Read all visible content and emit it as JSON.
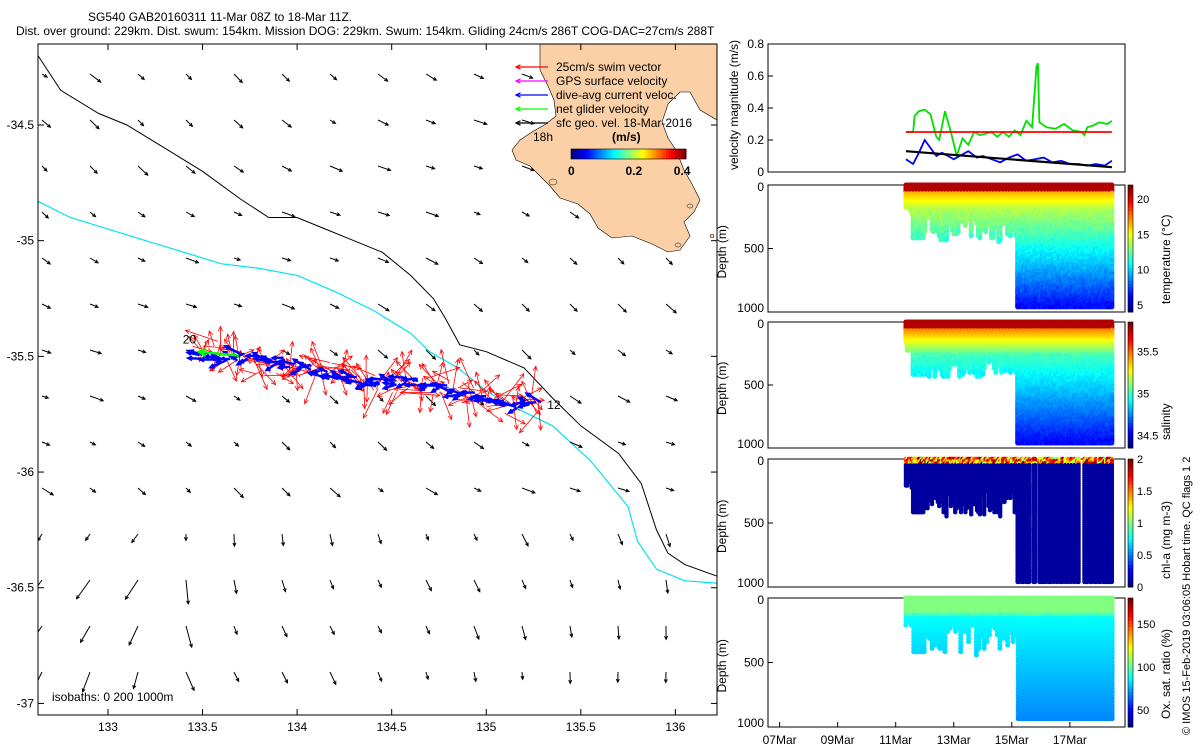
{
  "header": {
    "title": "SG540 GAB20160311 11-Mar 08Z to 18-Mar 11Z.",
    "subtitle": "Dist. over ground: 229km. Dist. swum: 154km. Mission DOG: 229km. Swum: 154km. Gliding 24cm/s 286T COG-DAC=27cm/s 288T"
  },
  "credit": "© IMOS 15-Feb-2019 03:06:05 Hobart time. QC flags 1  2",
  "chart_data": [
    {
      "type": "map",
      "name": "glider track map",
      "xlim": [
        132.63,
        136.22
      ],
      "ylim": [
        -37.05,
        -34.15
      ],
      "x_ticks": [
        133,
        133.5,
        134,
        134.5,
        135,
        135.5,
        136
      ],
      "y_ticks": [
        -34.5,
        -35,
        -35.5,
        -36,
        -36.5,
        -37
      ],
      "x_tick_labels": [
        "133",
        "133.5",
        "134",
        "134.5",
        "135",
        "135.5",
        "136"
      ],
      "y_tick_labels": [
        "-34.5",
        "-35",
        "-35.5",
        "-36",
        "-36.5",
        "-37"
      ],
      "legend": [
        {
          "label": "25cm/s swim vector",
          "color": "#ff0000"
        },
        {
          "label": "GPS surface velocity",
          "color": "#ff00ff"
        },
        {
          "label": "dive-avg current veloc.",
          "color": "#0000ff"
        },
        {
          "label": "net glider velocity",
          "color": "#00ff00"
        },
        {
          "label": "sfc geo. vel. 18-Mar-2016",
          "color": "#000000"
        }
      ],
      "legend_time_label": "18h",
      "colorbar": {
        "label": "(m/s)",
        "ticks": [
          "0",
          "0.2",
          "0.4"
        ]
      },
      "isobaths_label": "isobaths: 0  200  1000m",
      "track_start_label": "12",
      "track_end_label": "20",
      "track": {
        "start": [
          135.28,
          -35.71
        ],
        "end": [
          133.48,
          -35.48
        ]
      },
      "isobath_200m": [
        [
          132.63,
          -34.2
        ],
        [
          132.75,
          -34.35
        ],
        [
          132.95,
          -34.45
        ],
        [
          133.1,
          -34.5
        ],
        [
          133.3,
          -34.6
        ],
        [
          133.5,
          -34.7
        ],
        [
          133.7,
          -34.82
        ],
        [
          133.85,
          -34.9
        ],
        [
          134.0,
          -34.9
        ],
        [
          134.15,
          -34.95
        ],
        [
          134.3,
          -35.0
        ],
        [
          134.45,
          -35.05
        ],
        [
          134.6,
          -35.15
        ],
        [
          134.72,
          -35.25
        ],
        [
          134.78,
          -35.33
        ],
        [
          134.86,
          -35.45
        ],
        [
          135.0,
          -35.48
        ],
        [
          135.2,
          -35.55
        ],
        [
          135.35,
          -35.68
        ],
        [
          135.5,
          -35.8
        ],
        [
          135.7,
          -35.92
        ],
        [
          135.82,
          -36.05
        ],
        [
          135.9,
          -36.25
        ],
        [
          135.96,
          -36.35
        ],
        [
          136.05,
          -36.4
        ],
        [
          136.22,
          -36.45
        ]
      ],
      "isobath_1000m": [
        [
          132.63,
          -34.83
        ],
        [
          132.8,
          -34.9
        ],
        [
          133.0,
          -34.95
        ],
        [
          133.2,
          -35.0
        ],
        [
          133.4,
          -35.05
        ],
        [
          133.6,
          -35.1
        ],
        [
          133.8,
          -35.12
        ],
        [
          134.0,
          -35.15
        ],
        [
          134.2,
          -35.22
        ],
        [
          134.4,
          -35.3
        ],
        [
          134.6,
          -35.4
        ],
        [
          134.7,
          -35.48
        ],
        [
          134.85,
          -35.55
        ],
        [
          135.0,
          -35.65
        ],
        [
          135.15,
          -35.72
        ],
        [
          135.35,
          -35.8
        ],
        [
          135.55,
          -35.95
        ],
        [
          135.65,
          -36.05
        ],
        [
          135.75,
          -36.15
        ],
        [
          135.8,
          -36.3
        ],
        [
          135.9,
          -36.42
        ],
        [
          136.05,
          -36.47
        ],
        [
          136.22,
          -36.48
        ]
      ]
    },
    {
      "type": "line",
      "name": "velocity magnitude",
      "ylabel": "velocity magnitude (m/s)",
      "ylim": [
        0,
        0.8
      ],
      "y_ticks": [
        0,
        0.2,
        0.4,
        0.6,
        0.8
      ],
      "y_tick_labels": [
        "0",
        "0.2",
        "0.4",
        "0.6",
        "0.8"
      ],
      "series": [
        {
          "color": "#00e000",
          "x": [
            11.35,
            11.6,
            11.65,
            11.8,
            12.0,
            12.2,
            12.4,
            12.5,
            12.7,
            12.9,
            13.1,
            13.3,
            13.5,
            13.7,
            13.9,
            14.1,
            14.3,
            14.5,
            14.7,
            14.9,
            15.1,
            15.3,
            15.5,
            15.7,
            15.85,
            15.9,
            15.95,
            16.2,
            16.5,
            16.8,
            17.1,
            17.4,
            17.5,
            17.6,
            17.8,
            18.0,
            18.3,
            18.45
          ],
          "y": [
            0.25,
            0.25,
            0.35,
            0.38,
            0.39,
            0.36,
            0.22,
            0.2,
            0.38,
            0.25,
            0.1,
            0.21,
            0.17,
            0.25,
            0.23,
            0.24,
            0.25,
            0.22,
            0.25,
            0.22,
            0.26,
            0.23,
            0.32,
            0.28,
            0.66,
            0.68,
            0.31,
            0.28,
            0.27,
            0.3,
            0.26,
            0.25,
            0.23,
            0.28,
            0.29,
            0.31,
            0.3,
            0.32
          ]
        },
        {
          "color": "#ff0000",
          "x": [
            11.35,
            18.45
          ],
          "y": [
            0.25,
            0.25
          ]
        },
        {
          "color": "#0000ff",
          "x": [
            11.35,
            11.6,
            11.8,
            12.0,
            12.2,
            12.4,
            12.6,
            12.8,
            13.0,
            13.2,
            13.5,
            13.8,
            14.0,
            14.3,
            14.6,
            14.9,
            15.2,
            15.5,
            15.8,
            16.1,
            16.4,
            16.7,
            17.0,
            17.3,
            17.6,
            17.9,
            18.2,
            18.45
          ],
          "y": [
            0.08,
            0.05,
            0.12,
            0.2,
            0.15,
            0.1,
            0.12,
            0.1,
            0.08,
            0.1,
            0.13,
            0.09,
            0.1,
            0.08,
            0.06,
            0.09,
            0.11,
            0.07,
            0.08,
            0.09,
            0.06,
            0.07,
            0.05,
            0.05,
            0.04,
            0.05,
            0.04,
            0.07
          ]
        },
        {
          "color": "#000000",
          "x": [
            11.35,
            18.45
          ],
          "y": [
            0.13,
            0.03
          ]
        }
      ]
    },
    {
      "type": "heatmap",
      "name": "temperature section",
      "ylabel": "Depth (m)",
      "colorbar_label": "temperature (°C)",
      "ylim": [
        0,
        1000
      ],
      "y_tick_labels": [
        "0",
        "500",
        "1000"
      ],
      "cbar_range": [
        4,
        22
      ],
      "cbar_ticks": [
        5,
        10,
        15,
        20
      ],
      "cbar_tick_labels": [
        "5",
        "10",
        "15",
        "20"
      ],
      "colormap": "jet"
    },
    {
      "type": "heatmap",
      "name": "salinity section",
      "ylabel": "Depth (m)",
      "colorbar_label": "salinity",
      "ylim": [
        0,
        1000
      ],
      "y_tick_labels": [
        "0",
        "500",
        "1000"
      ],
      "cbar_range": [
        34.35,
        35.85
      ],
      "cbar_ticks": [
        34.5,
        35,
        35.5
      ],
      "cbar_tick_labels": [
        "34.5",
        "35",
        "35.5"
      ],
      "colormap": "jet"
    },
    {
      "type": "heatmap",
      "name": "chlorophyll section",
      "ylabel": "Depth (m)",
      "colorbar_label": "chl-a (mg m-3)",
      "ylim": [
        0,
        1000
      ],
      "y_tick_labels": [
        "0",
        "500",
        "1000"
      ],
      "cbar_range": [
        0,
        2
      ],
      "cbar_ticks": [
        0,
        0.5,
        1,
        1.5,
        2
      ],
      "cbar_tick_labels": [
        "0",
        "0.5",
        "1",
        "1.5",
        "2"
      ],
      "colormap": "jet"
    },
    {
      "type": "heatmap",
      "name": "oxygen section",
      "ylabel": "Depth (m)",
      "colorbar_label": "Ox. sat. ratio (%)",
      "ylim": [
        0,
        1000
      ],
      "y_tick_labels": [
        "0",
        "500",
        "1000"
      ],
      "cbar_range": [
        30,
        180
      ],
      "cbar_ticks": [
        50,
        100,
        150
      ],
      "cbar_tick_labels": [
        "50",
        "100",
        "150"
      ],
      "colormap": "jet"
    },
    {
      "type": "time_axis",
      "xlim": [
        6.6,
        18.9
      ],
      "x_ticks": [
        7,
        9,
        11,
        13,
        15,
        17
      ],
      "x_tick_labels": [
        "07Mar",
        "09Mar",
        "11Mar",
        "13Mar",
        "15Mar",
        "17Mar"
      ]
    }
  ],
  "palette": {
    "land": "#fbd0a6",
    "track_red": "#ff0000",
    "track_blue": "#0000ff",
    "net_green": "#00ff00",
    "isobath_1000": "#00e5ee",
    "isobath_200": "#000000"
  }
}
